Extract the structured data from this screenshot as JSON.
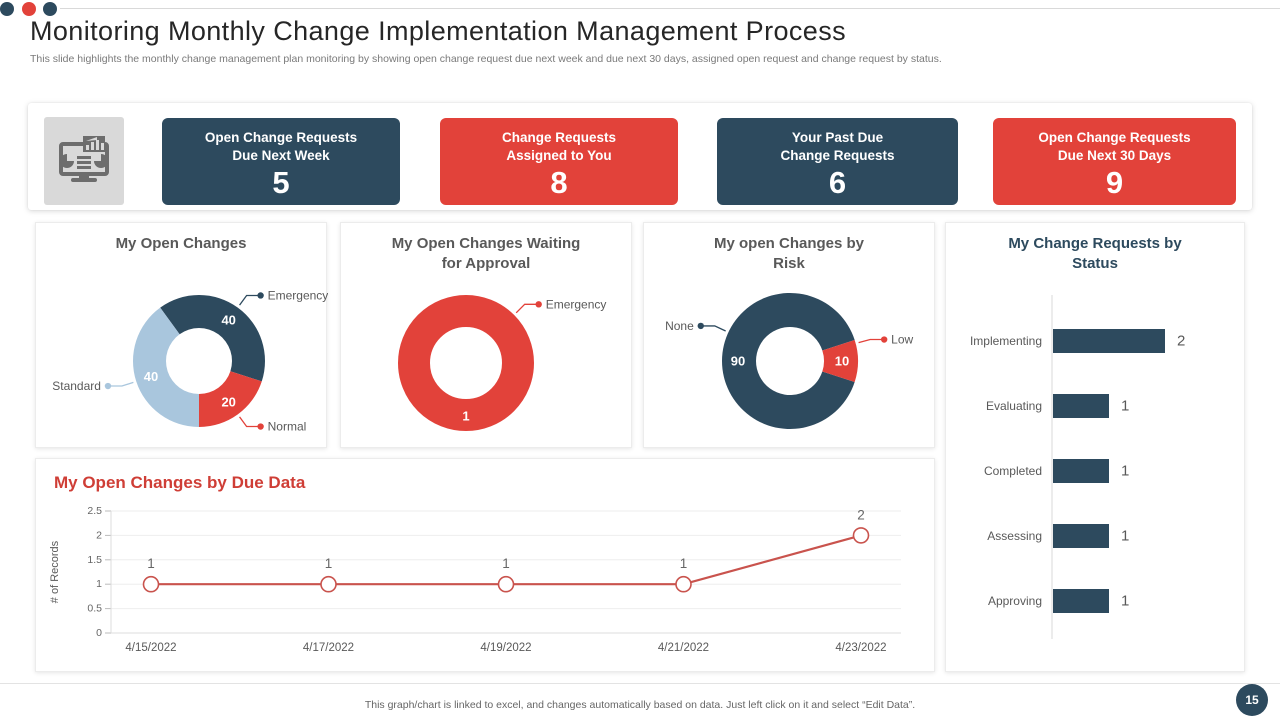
{
  "window": {
    "dot_colors": [
      "#2d4a5e",
      "#e2423a",
      "#2d4a5e"
    ]
  },
  "header": {
    "title": "Monitoring Monthly Change Implementation Management Process",
    "subtitle": "This slide highlights the monthly change management plan monitoring by showing open change request due next week and due next 30 days, assigned open request and change request by status."
  },
  "kpi": {
    "icon": "dashboard-monitor-icon",
    "cards": [
      {
        "label_line1": "Open Change Requests",
        "label_line2": "Due Next Week",
        "value": "5",
        "color": "#2d4a5e"
      },
      {
        "label_line1": "Change Requests",
        "label_line2": "Assigned to You",
        "value": "8",
        "color": "#e2423a"
      },
      {
        "label_line1": "Your Past Due",
        "label_line2": "Change Requests",
        "value": "6",
        "color": "#2d4a5e"
      },
      {
        "label_line1": "Open Change Requests",
        "label_line2": "Due Next 30 Days",
        "value": "9",
        "color": "#e2423a"
      }
    ]
  },
  "chart_data": [
    {
      "type": "pie",
      "subtype": "donut",
      "title": "My Open Changes",
      "start_angle": -36,
      "slices": [
        {
          "label": "Emergency",
          "value": 40,
          "color": "#2d4a5e"
        },
        {
          "label": "Normal",
          "value": 20,
          "color": "#e2423a"
        },
        {
          "label": "Standard",
          "value": 40,
          "color": "#a9c6dd"
        }
      ]
    },
    {
      "type": "pie",
      "subtype": "donut",
      "title": "My Open Changes Waiting for Approval",
      "start_angle": 0,
      "slices": [
        {
          "label": "Emergency",
          "value": 1,
          "color": "#e2423a",
          "label_angle": 45
        }
      ]
    },
    {
      "type": "pie",
      "subtype": "donut",
      "title": "My open Changes by Risk",
      "start_angle": 108,
      "slices": [
        {
          "label": "None",
          "value": 90,
          "color": "#2d4a5e",
          "label_angle": 295
        },
        {
          "label": "Low",
          "value": 10,
          "color": "#e2423a",
          "label_angle": 75
        }
      ]
    },
    {
      "type": "bar",
      "orientation": "horizontal",
      "title": "My Change Requests by Status",
      "categories": [
        "Implementing",
        "Evaluating",
        "Completed",
        "Assessing",
        "Approving"
      ],
      "values": [
        2,
        1,
        1,
        1,
        1
      ],
      "bar_color": "#2d4a5e",
      "xlim": [
        0,
        2.2
      ]
    },
    {
      "type": "line",
      "title": "My Open Changes by Due Data",
      "x": [
        "4/15/2022",
        "4/17/2022",
        "4/19/2022",
        "4/21/2022",
        "4/23/2022"
      ],
      "values": [
        1,
        1,
        1,
        1,
        2
      ],
      "ylabel": "# of Records",
      "ylim": [
        0,
        2.5
      ],
      "yticks": [
        0,
        0.5,
        1,
        1.5,
        2,
        2.5
      ],
      "line_color": "#c9534d",
      "grid": true,
      "legend": "none"
    }
  ],
  "footer": {
    "note": "This graph/chart is linked to excel, and changes automatically based on data. Just left click on it and select “Edit Data”.",
    "page_number": "15"
  }
}
